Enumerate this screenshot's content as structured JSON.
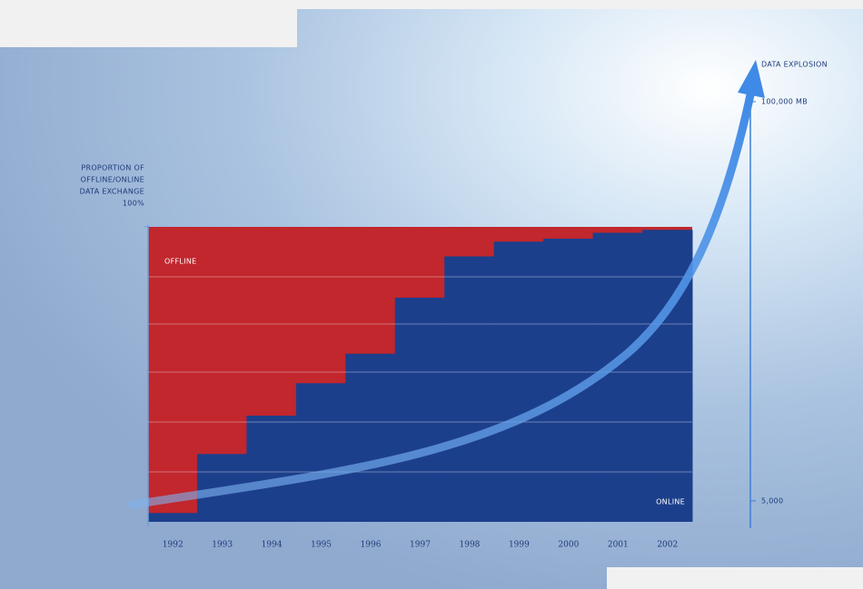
{
  "chart_data": {
    "type": "step-area",
    "y_label": [
      "PROPORTION OF",
      "OFFLINE/ONLINE",
      "DATA EXCHANGE"
    ],
    "categories": [
      "1992",
      "1993",
      "1994",
      "1995",
      "1996",
      "1997",
      "1998",
      "1999",
      "2000",
      "2001",
      "2002"
    ],
    "offline_label": "OFFLINE",
    "offline_color": "#c1272d",
    "series": [
      {
        "name": "ONLINE",
        "color": "#1c3f8c",
        "values": [
          3,
          23,
          36,
          47,
          57,
          76,
          90,
          95,
          96,
          98,
          99
        ]
      }
    ],
    "ylim": [
      0,
      100
    ],
    "yticks": [
      {
        "value": 100,
        "label": "100%"
      }
    ],
    "y2_label": "DATA EXPLOSION",
    "y2lim": [
      0,
      108000
    ],
    "y2ticks": [
      {
        "value": 5000,
        "label": "5,000"
      },
      {
        "value": 100000,
        "label": "100,000 MB"
      }
    ]
  }
}
